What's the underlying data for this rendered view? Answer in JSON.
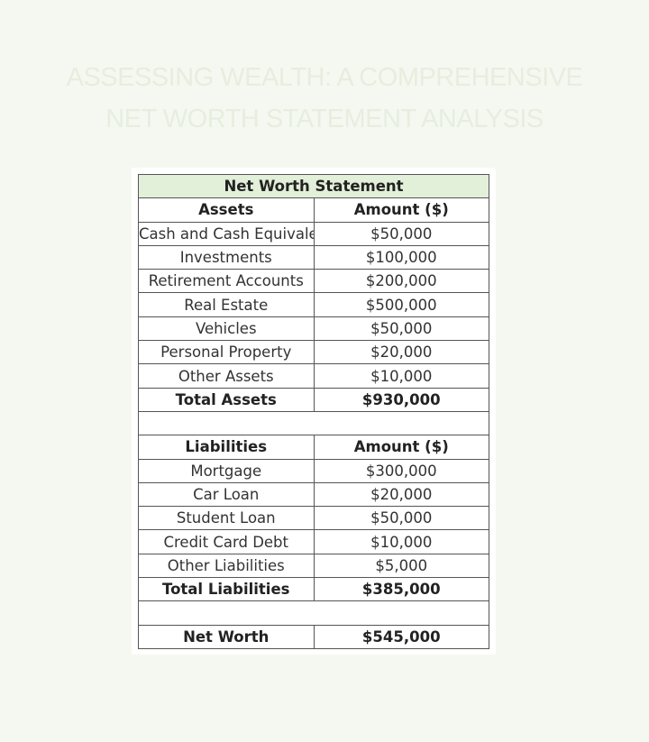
{
  "title_line1": "ASSESSING WEALTH: A COMPREHENSIVE",
  "title_line2": "NET WORTH STATEMENT ANALYSIS",
  "table": {
    "title": "Net Worth Statement",
    "assets_header": [
      "Assets",
      "Amount ($)"
    ],
    "assets": [
      [
        "Cash and Cash Equivalents",
        "$50,000"
      ],
      [
        "Investments",
        "$100,000"
      ],
      [
        "Retirement Accounts",
        "$200,000"
      ],
      [
        "Real Estate",
        "$500,000"
      ],
      [
        "Vehicles",
        "$50,000"
      ],
      [
        "Personal Property",
        "$20,000"
      ],
      [
        "Other Assets",
        "$10,000"
      ]
    ],
    "total_assets": [
      "Total Assets",
      "$930,000"
    ],
    "liabilities_header": [
      "Liabilities",
      "Amount ($)"
    ],
    "liabilities": [
      [
        "Mortgage",
        "$300,000"
      ],
      [
        "Car Loan",
        "$20,000"
      ],
      [
        "Student Loan",
        "$50,000"
      ],
      [
        "Credit Card Debt",
        "$10,000"
      ],
      [
        "Other Liabilities",
        "$5,000"
      ]
    ],
    "total_liabilities": [
      "Total Liabilities",
      "$385,000"
    ],
    "net_worth": [
      "Net Worth",
      "$545,000"
    ]
  },
  "colors": {
    "header_bg": "#e2efd9",
    "page_bg": "#f5f8f0"
  }
}
